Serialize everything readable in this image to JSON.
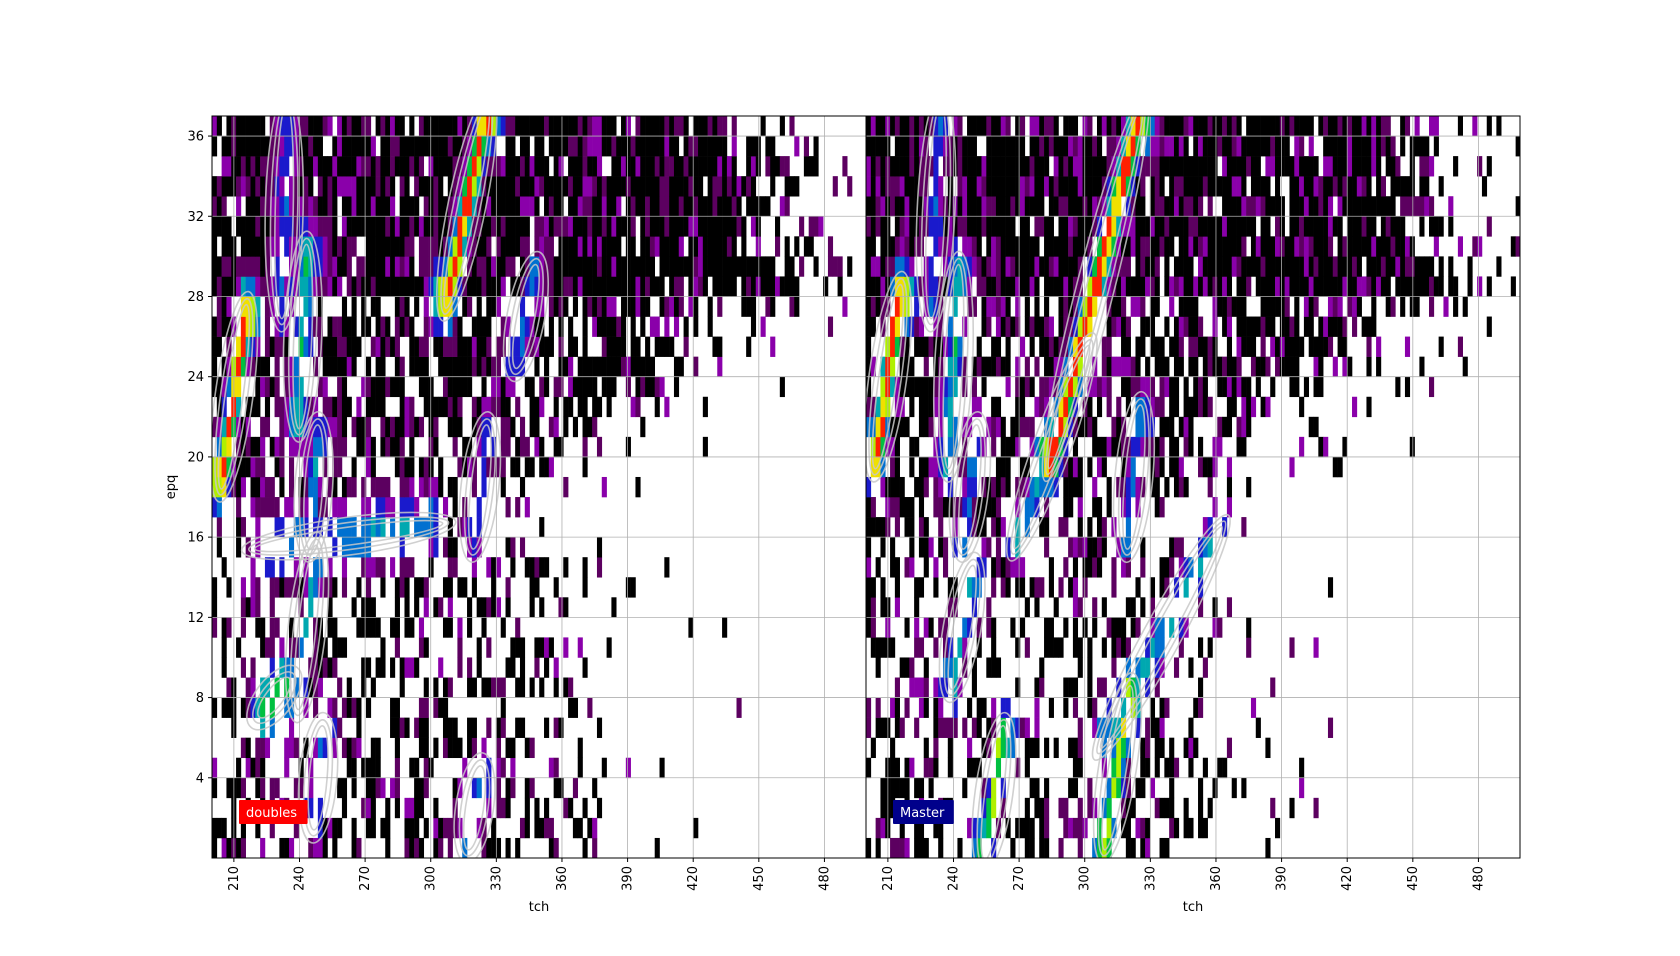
{
  "chart_data": {
    "type": "heatmap",
    "shared_ylabel": "epq",
    "y_ticks": [
      4,
      8,
      12,
      16,
      20,
      24,
      28,
      32,
      36
    ],
    "x_ticks": [
      210,
      240,
      270,
      300,
      330,
      360,
      390,
      420,
      450,
      480
    ],
    "xlim": [
      200,
      499
    ],
    "ylim": [
      0,
      37
    ],
    "grid": true,
    "colormap": [
      "#000000",
      "#5c0060",
      "#8a00aa",
      "#1a1acc",
      "#0070d0",
      "#00a8b0",
      "#00c040",
      "#b0f000",
      "#f0e000",
      "#ff2000"
    ],
    "contour_color": "#c8c8c8",
    "panels": [
      {
        "xlabel": "tch",
        "legend_label": "doubles",
        "legend_color": "#ff0000",
        "ridges": [
          {
            "x0": 205,
            "y0": 19,
            "x1": 215,
            "y1": 27,
            "peak": 1.0
          },
          {
            "x0": 240,
            "y0": 22,
            "x1": 243,
            "y1": 30,
            "peak": 0.6
          },
          {
            "x0": 308,
            "y0": 28,
            "x1": 325,
            "y1": 37,
            "peak": 1.0
          },
          {
            "x0": 340,
            "y0": 25,
            "x1": 347,
            "y1": 29,
            "peak": 0.4
          },
          {
            "x0": 245,
            "y0": 16,
            "x1": 248,
            "y1": 21,
            "peak": 0.45
          },
          {
            "x0": 240,
            "y0": 8,
            "x1": 247,
            "y1": 15,
            "peak": 0.55
          },
          {
            "x0": 247,
            "y0": 2,
            "x1": 250,
            "y1": 6,
            "peak": 0.45
          },
          {
            "x0": 318,
            "y0": 1,
            "x1": 322,
            "y1": 4,
            "peak": 0.5
          },
          {
            "x0": 225,
            "y0": 7.5,
            "x1": 232,
            "y1": 8.5,
            "peak": 0.7
          },
          {
            "x0": 225,
            "y0": 15.5,
            "x1": 300,
            "y1": 16.6,
            "peak": 0.45
          },
          {
            "x0": 320,
            "y0": 16,
            "x1": 325,
            "y1": 21,
            "peak": 0.35
          },
          {
            "x0": 232,
            "y0": 27.5,
            "x1": 234,
            "y1": 37,
            "peak": 0.35
          }
        ]
      },
      {
        "xlabel": "tch",
        "legend_label": "Master",
        "legend_color": "#00008b",
        "ridges": [
          {
            "x0": 205,
            "y0": 20,
            "x1": 215,
            "y1": 28,
            "peak": 1.0
          },
          {
            "x0": 238,
            "y0": 20,
            "x1": 242,
            "y1": 29,
            "peak": 0.55
          },
          {
            "x0": 285,
            "y0": 20,
            "x1": 325,
            "y1": 37,
            "peak": 1.0
          },
          {
            "x0": 245,
            "y0": 16,
            "x1": 250,
            "y1": 21,
            "peak": 0.4
          },
          {
            "x0": 240,
            "y0": 9,
            "x1": 248,
            "y1": 14,
            "peak": 0.55
          },
          {
            "x0": 255,
            "y0": 0.5,
            "x1": 262,
            "y1": 6,
            "peak": 0.75
          },
          {
            "x0": 310,
            "y0": 1,
            "x1": 320,
            "y1": 8,
            "peak": 0.8
          },
          {
            "x0": 320,
            "y0": 16,
            "x1": 325,
            "y1": 22,
            "peak": 0.45
          },
          {
            "x0": 310,
            "y0": 6,
            "x1": 360,
            "y1": 16,
            "peak": 0.5
          },
          {
            "x0": 270,
            "y0": 16,
            "x1": 300,
            "y1": 25,
            "peak": 0.5
          },
          {
            "x0": 230,
            "y0": 27.5,
            "x1": 234,
            "y1": 37,
            "peak": 0.35
          }
        ]
      }
    ]
  }
}
